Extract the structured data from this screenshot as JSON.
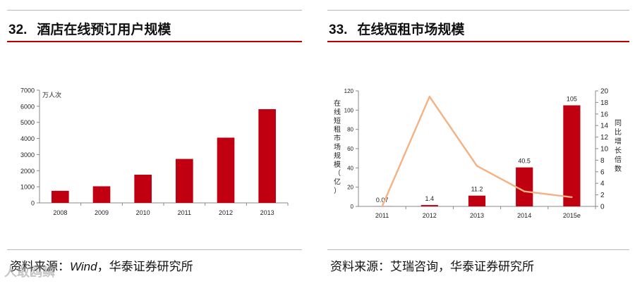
{
  "left": {
    "title_num": "32.",
    "title_text": "酒店在线预订用户规模",
    "source_prefix": "资料来源：",
    "source_wind": "Wind",
    "source_suffix": "，华泰证券研究所"
  },
  "right": {
    "title_num": "33.",
    "title_text": "在线短租市场规模",
    "source": "资料来源：艾瑞咨询，华泰证券研究所"
  },
  "watermark": "人敢鸥鳞",
  "colors": {
    "bar": "#c00010",
    "line": "#f4b183",
    "rule": "#c00000"
  },
  "chart_data": [
    {
      "type": "bar",
      "categories": [
        "2008",
        "2009",
        "2010",
        "2011",
        "2012",
        "2013"
      ],
      "values": [
        750,
        1030,
        1750,
        2730,
        4050,
        5820
      ],
      "ylabel": "万人次",
      "ylim": [
        0,
        7000
      ],
      "yticks": [
        "0",
        "1000",
        "2000",
        "3000",
        "4000",
        "5000",
        "6000",
        "7000"
      ]
    },
    {
      "type": "bar+line",
      "categories": [
        "2011",
        "2012",
        "2013",
        "2014",
        "2015e"
      ],
      "bars": {
        "values": [
          0.07,
          1.4,
          11.2,
          40.5,
          105
        ],
        "labels": [
          "0.07",
          "1.4",
          "11.2",
          "40.5",
          "105"
        ]
      },
      "line": {
        "values": [
          0,
          19,
          7,
          2.6,
          1.6
        ]
      },
      "ylabel_left": "在线短租市场规模（亿）",
      "ylabel_right": "同比增长倍数",
      "ylim_left": [
        0,
        120
      ],
      "ylim_right": [
        0,
        20
      ],
      "yticks_left": [
        "0",
        "20",
        "40",
        "60",
        "80",
        "100",
        "120"
      ],
      "yticks_right": [
        "0",
        "2",
        "4",
        "6",
        "8",
        "10",
        "12",
        "14",
        "16",
        "18",
        "20"
      ]
    }
  ]
}
